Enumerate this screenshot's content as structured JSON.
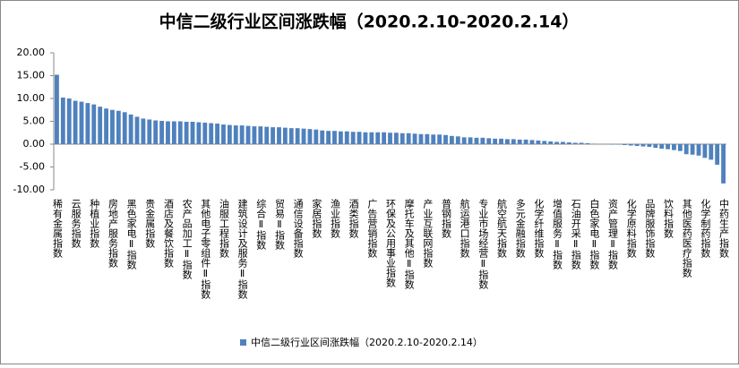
{
  "chart_data": {
    "type": "bar",
    "title": "中信二级行业区间涨跌幅（2020.2.10-2020.2.14）",
    "categories": [
      "稀有金属指数",
      null,
      null,
      "云服务指数",
      null,
      null,
      "种植业指数",
      null,
      null,
      "房地产服务指数",
      null,
      null,
      "黑色家电Ⅱ指数",
      null,
      null,
      "贵金属指数",
      null,
      null,
      "酒店及餐饮指数",
      null,
      null,
      "农产品加工Ⅱ指数",
      null,
      null,
      "其他电子零组件Ⅱ指数",
      null,
      null,
      "油服工程指数",
      null,
      null,
      "建筑设计及服务Ⅱ指数",
      null,
      null,
      "综合Ⅱ指数",
      null,
      null,
      "贸易Ⅱ指数",
      null,
      null,
      "通信设备指数",
      null,
      null,
      "家居指数",
      null,
      null,
      "渔业指数",
      null,
      null,
      "酒类指数",
      null,
      null,
      "广告营销指数",
      null,
      null,
      "环保及公用事业指数",
      null,
      null,
      "摩托车及其他Ⅱ指数",
      null,
      null,
      "产业互联网指数",
      null,
      null,
      "普钢指数",
      null,
      null,
      "航运港口指数",
      null,
      null,
      "专业市场经营Ⅱ指数",
      null,
      null,
      "航空航天指数",
      null,
      null,
      "多元金融指数",
      null,
      null,
      "化学纤维指数",
      null,
      null,
      "增值服务Ⅱ指数",
      null,
      null,
      "石油开采Ⅱ指数",
      null,
      null,
      "白色家电Ⅱ指数",
      null,
      null,
      "资产管理Ⅱ指数",
      null,
      null,
      "化学原料指数",
      null,
      null,
      "品牌服饰指数",
      null,
      null,
      "饮料指数",
      null,
      null,
      "其他医药医疗指数",
      null,
      null,
      "化学制药指数",
      null,
      null,
      "中药生产指数"
    ],
    "series": [
      {
        "name": "中信二级行业区间涨跌幅（2020.2.10-2020.2.14）",
        "color": "#4f81bd",
        "values": [
          15.2,
          10.2,
          10.0,
          9.5,
          9.3,
          9.0,
          8.7,
          8.2,
          7.8,
          7.5,
          7.3,
          7.0,
          6.5,
          6.0,
          5.6,
          5.4,
          5.2,
          5.1,
          5.0,
          5.0,
          5.0,
          4.9,
          4.9,
          4.8,
          4.7,
          4.6,
          4.5,
          4.3,
          4.2,
          4.1,
          4.1,
          4.0,
          3.9,
          3.9,
          3.8,
          3.7,
          3.7,
          3.6,
          3.5,
          3.5,
          3.4,
          3.3,
          3.2,
          3.0,
          2.9,
          2.9,
          2.8,
          2.8,
          2.7,
          2.7,
          2.6,
          2.6,
          2.6,
          2.6,
          2.5,
          2.5,
          2.4,
          2.4,
          2.3,
          2.2,
          2.2,
          2.1,
          2.1,
          2.0,
          1.8,
          1.7,
          1.5,
          1.5,
          1.4,
          1.4,
          1.3,
          1.2,
          1.2,
          1.1,
          1.1,
          1.0,
          1.0,
          0.9,
          0.8,
          0.7,
          0.6,
          0.5,
          0.5,
          0.4,
          0.3,
          0.3,
          0.2,
          0.1,
          0.0,
          0.0,
          -0.1,
          -0.1,
          -0.2,
          -0.3,
          -0.4,
          -0.5,
          -0.6,
          -0.8,
          -1.0,
          -1.1,
          -1.3,
          -1.5,
          -2.2,
          -2.3,
          -2.5,
          -3.0,
          -3.4,
          -4.5,
          -8.6
        ]
      }
    ],
    "ylim": [
      -10,
      20
    ],
    "yticks": [
      {
        "value": -10,
        "label": "-10.00"
      },
      {
        "value": -5,
        "label": "-5.00"
      },
      {
        "value": 0,
        "label": "0.00"
      },
      {
        "value": 5,
        "label": "5.00"
      },
      {
        "value": 10,
        "label": "10.00"
      },
      {
        "value": 15,
        "label": "15.00"
      },
      {
        "value": 20,
        "label": "20.00"
      }
    ],
    "grid": false,
    "legend": "bottom"
  }
}
